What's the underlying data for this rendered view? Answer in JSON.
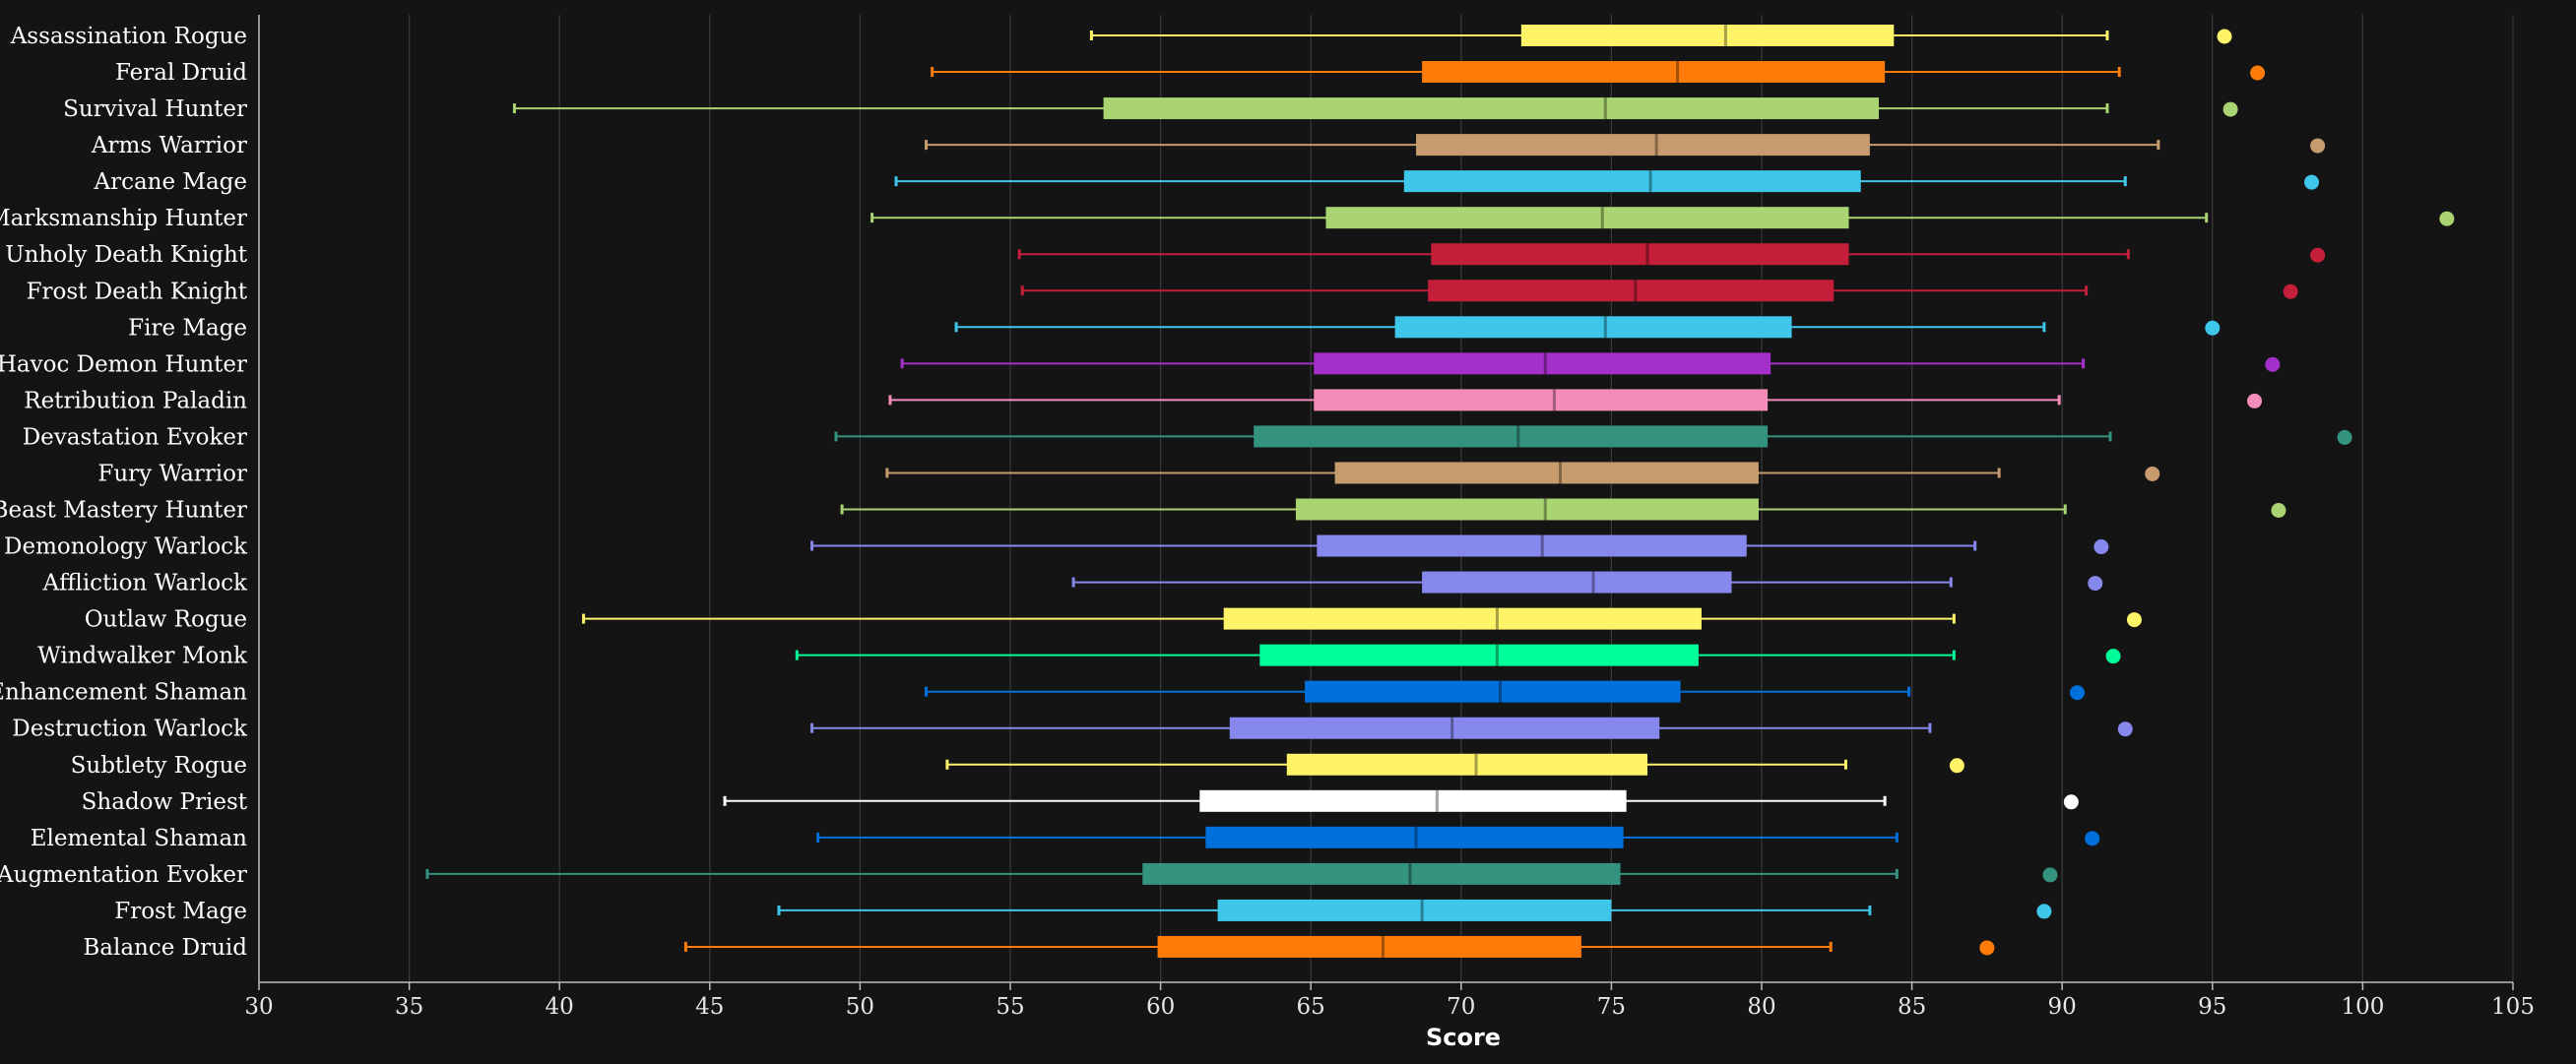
{
  "chart_data": {
    "type": "boxplot",
    "title": "",
    "xlabel": "Score",
    "ylabel": "",
    "xlim": [
      30,
      105
    ],
    "x_ticks": [
      "30",
      "35",
      "40",
      "45",
      "50",
      "55",
      "60",
      "65",
      "70",
      "75",
      "80",
      "85",
      "90",
      "95",
      "100",
      "105"
    ],
    "grid": "vertical",
    "legend": "none",
    "series": [
      {
        "name": "Assassination Rogue",
        "color": "#FFF468",
        "min": 57.7,
        "q1": 72.0,
        "median": 78.8,
        "q3": 84.4,
        "max": 91.5,
        "outlier": 95.4
      },
      {
        "name": "Feral Druid",
        "color": "#FF7C0A",
        "min": 52.4,
        "q1": 68.7,
        "median": 77.2,
        "q3": 84.1,
        "max": 91.9,
        "outlier": 96.5
      },
      {
        "name": "Survival Hunter",
        "color": "#AAD372",
        "min": 38.5,
        "q1": 58.1,
        "median": 74.8,
        "q3": 83.9,
        "max": 91.5,
        "outlier": 95.6
      },
      {
        "name": "Arms Warrior",
        "color": "#C69B6D",
        "min": 52.2,
        "q1": 68.5,
        "median": 76.5,
        "q3": 83.6,
        "max": 93.2,
        "outlier": 98.5
      },
      {
        "name": "Arcane Mage",
        "color": "#3FC7EB",
        "min": 51.2,
        "q1": 68.1,
        "median": 76.3,
        "q3": 83.3,
        "max": 92.1,
        "outlier": 98.3
      },
      {
        "name": "Marksmanship Hunter",
        "color": "#AAD372",
        "min": 50.4,
        "q1": 65.5,
        "median": 74.7,
        "q3": 82.9,
        "max": 94.8,
        "outlier": 102.8
      },
      {
        "name": "Unholy Death Knight",
        "color": "#C41E3A",
        "min": 55.3,
        "q1": 69.0,
        "median": 76.2,
        "q3": 82.9,
        "max": 92.2,
        "outlier": 98.5
      },
      {
        "name": "Frost Death Knight",
        "color": "#C41E3A",
        "min": 55.4,
        "q1": 68.9,
        "median": 75.8,
        "q3": 82.4,
        "max": 90.8,
        "outlier": 97.6
      },
      {
        "name": "Fire Mage",
        "color": "#3FC7EB",
        "min": 53.2,
        "q1": 67.8,
        "median": 74.8,
        "q3": 81.0,
        "max": 89.4,
        "outlier": 95.0
      },
      {
        "name": "Havoc Demon Hunter",
        "color": "#A330C9",
        "min": 51.4,
        "q1": 65.1,
        "median": 72.8,
        "q3": 80.3,
        "max": 90.7,
        "outlier": 97.0
      },
      {
        "name": "Retribution Paladin",
        "color": "#F48CBA",
        "min": 51.0,
        "q1": 65.1,
        "median": 73.1,
        "q3": 80.2,
        "max": 89.9,
        "outlier": 96.4
      },
      {
        "name": "Devastation Evoker",
        "color": "#33937F",
        "min": 49.2,
        "q1": 63.1,
        "median": 71.9,
        "q3": 80.2,
        "max": 91.6,
        "outlier": 99.4
      },
      {
        "name": "Fury Warrior",
        "color": "#C69B6D",
        "min": 50.9,
        "q1": 65.8,
        "median": 73.3,
        "q3": 79.9,
        "max": 87.9,
        "outlier": 93.0
      },
      {
        "name": "Beast Mastery Hunter",
        "color": "#AAD372",
        "min": 49.4,
        "q1": 64.5,
        "median": 72.8,
        "q3": 79.9,
        "max": 90.1,
        "outlier": 97.2
      },
      {
        "name": "Demonology Warlock",
        "color": "#8788EE",
        "min": 48.4,
        "q1": 65.2,
        "median": 72.7,
        "q3": 79.5,
        "max": 87.1,
        "outlier": 91.3
      },
      {
        "name": "Affliction Warlock",
        "color": "#8788EE",
        "min": 57.1,
        "q1": 68.7,
        "median": 74.4,
        "q3": 79.0,
        "max": 86.3,
        "outlier": 91.1
      },
      {
        "name": "Outlaw Rogue",
        "color": "#FFF468",
        "min": 40.8,
        "q1": 62.1,
        "median": 71.2,
        "q3": 78.0,
        "max": 86.4,
        "outlier": 92.4
      },
      {
        "name": "Windwalker Monk",
        "color": "#00FF98",
        "min": 47.9,
        "q1": 63.3,
        "median": 71.2,
        "q3": 77.9,
        "max": 86.4,
        "outlier": 91.7
      },
      {
        "name": "Enhancement Shaman",
        "color": "#0070DD",
        "min": 52.2,
        "q1": 64.8,
        "median": 71.3,
        "q3": 77.3,
        "max": 84.9,
        "outlier": 90.5
      },
      {
        "name": "Destruction Warlock",
        "color": "#8788EE",
        "min": 48.4,
        "q1": 62.3,
        "median": 69.7,
        "q3": 76.6,
        "max": 85.6,
        "outlier": 92.1
      },
      {
        "name": "Subtlety Rogue",
        "color": "#FFF468",
        "min": 52.9,
        "q1": 64.2,
        "median": 70.5,
        "q3": 76.2,
        "max": 82.8,
        "outlier": 86.5
      },
      {
        "name": "Shadow Priest",
        "color": "#FFFFFF",
        "min": 45.5,
        "q1": 61.3,
        "median": 69.2,
        "q3": 75.5,
        "max": 84.1,
        "outlier": 90.3
      },
      {
        "name": "Elemental Shaman",
        "color": "#0070DD",
        "min": 48.6,
        "q1": 61.5,
        "median": 68.5,
        "q3": 75.4,
        "max": 84.5,
        "outlier": 91.0
      },
      {
        "name": "Augmentation Evoker",
        "color": "#33937F",
        "min": 35.6,
        "q1": 59.4,
        "median": 68.3,
        "q3": 75.3,
        "max": 84.5,
        "outlier": 89.6
      },
      {
        "name": "Frost Mage",
        "color": "#3FC7EB",
        "min": 47.3,
        "q1": 61.9,
        "median": 68.7,
        "q3": 75.0,
        "max": 83.6,
        "outlier": 89.4
      },
      {
        "name": "Balance Druid",
        "color": "#FF7C0A",
        "min": 44.2,
        "q1": 59.9,
        "median": 67.4,
        "q3": 74.0,
        "max": 82.3,
        "outlier": 87.5
      }
    ]
  }
}
